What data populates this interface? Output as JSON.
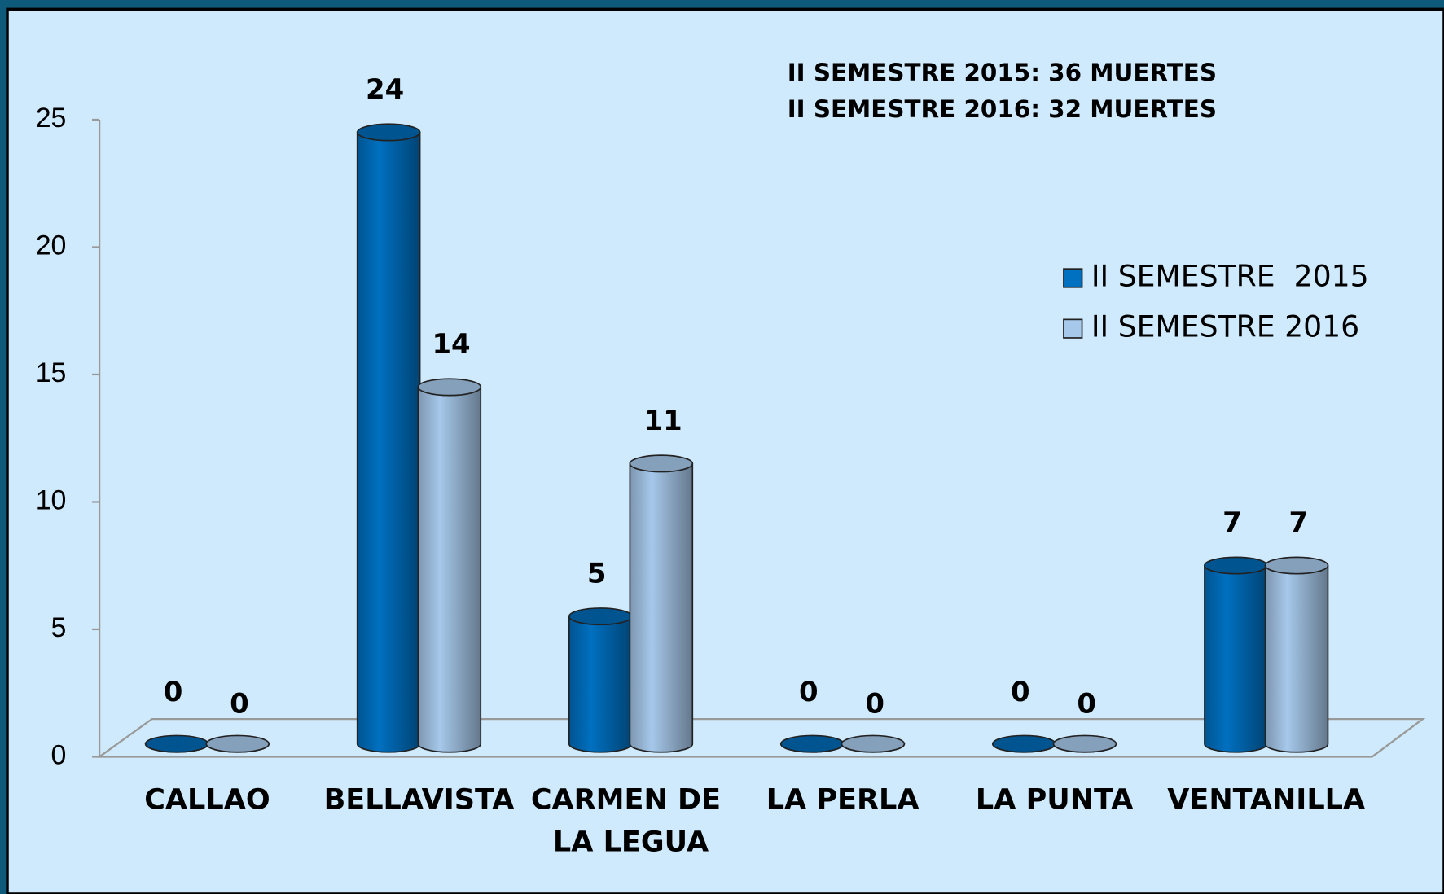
{
  "chart_data": {
    "type": "bar3d",
    "annotations": [
      "II SEMESTRE 2015: 36  MUERTES",
      "II SEMESTRE 2016: 32  MUERTES"
    ],
    "categories": [
      "CALLAO",
      "BELLAVISTA",
      "CARMEN DE LA LEGUA",
      "LA PERLA",
      "LA PUNTA",
      "VENTANILLA"
    ],
    "series": [
      {
        "name": "II SEMESTRE  2015",
        "color": "#0070c0",
        "values": [
          0,
          24,
          5,
          0,
          0,
          7
        ]
      },
      {
        "name": "II SEMESTRE 2016",
        "color": "#a6c8ea",
        "values": [
          0,
          14,
          11,
          0,
          0,
          7
        ]
      }
    ],
    "ylim": [
      0,
      25
    ],
    "yticks": [
      0,
      5,
      10,
      15,
      20,
      25
    ],
    "legend": "right"
  }
}
